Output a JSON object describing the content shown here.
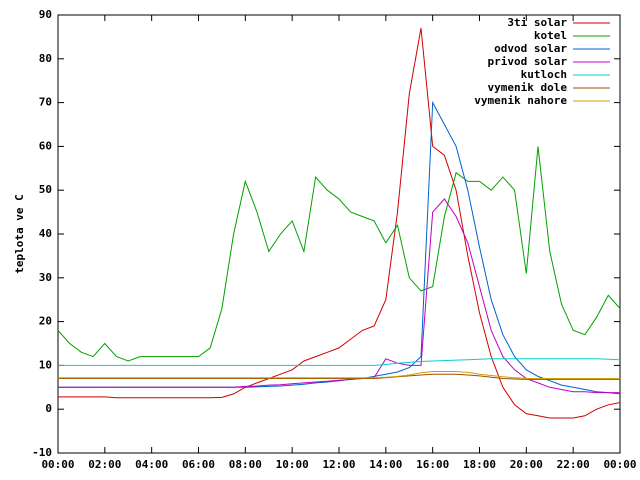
{
  "chart_data": {
    "type": "line",
    "ylabel": "teplota ve C",
    "x": [
      0,
      0.5,
      1,
      1.5,
      2,
      2.5,
      3,
      3.5,
      4,
      4.5,
      5,
      5.5,
      6,
      6.5,
      7,
      7.5,
      8,
      8.5,
      9,
      9.5,
      10,
      10.5,
      11,
      11.5,
      12,
      12.5,
      13,
      13.5,
      14,
      14.5,
      15,
      15.5,
      16,
      16.5,
      17,
      17.5,
      18,
      18.5,
      19,
      19.5,
      20,
      20.5,
      21,
      21.5,
      22,
      22.5,
      23,
      23.5,
      24
    ],
    "series": [
      {
        "name": "3ti solar",
        "color": "#d00000",
        "values": [
          2.8,
          2.8,
          2.8,
          2.8,
          2.8,
          2.6,
          2.6,
          2.6,
          2.6,
          2.6,
          2.6,
          2.6,
          2.6,
          2.6,
          2.7,
          3.5,
          5,
          6,
          7,
          8,
          9,
          11,
          12,
          13,
          14,
          16,
          18,
          19,
          25,
          45,
          72,
          87,
          60,
          58,
          50,
          35,
          22,
          12,
          5,
          1,
          -1,
          -1.5,
          -2,
          -2,
          -2,
          -1.5,
          0,
          1,
          1.5
        ]
      },
      {
        "name": "kotel",
        "color": "#00a000",
        "values": [
          18,
          15,
          13,
          12,
          15,
          12,
          11,
          12,
          12,
          12,
          12,
          12,
          12,
          14,
          23,
          40,
          52,
          45,
          36,
          40,
          43,
          36,
          53,
          50,
          48,
          45,
          44,
          43,
          38,
          42,
          30,
          27,
          28,
          44,
          54,
          52,
          52,
          50,
          53,
          50,
          31,
          60,
          36,
          24,
          18,
          17,
          21,
          26,
          23
        ]
      },
      {
        "name": "odvod solar",
        "color": "#0060d0",
        "values": [
          5,
          5,
          5,
          5,
          5,
          5,
          5,
          5,
          5,
          5,
          5,
          5,
          5,
          5,
          5,
          5,
          5,
          5.1,
          5.2,
          5.3,
          5.5,
          5.7,
          6,
          6.2,
          6.5,
          6.8,
          7,
          7.5,
          8,
          8.5,
          9.5,
          12,
          70,
          65,
          60,
          50,
          37,
          25,
          17,
          12,
          9,
          7.5,
          6.5,
          5.5,
          5,
          4.5,
          4,
          3.8,
          3.5
        ]
      },
      {
        "name": "privod solar",
        "color": "#c000c0",
        "values": [
          5,
          5,
          5,
          5,
          5,
          5,
          5,
          5,
          5,
          5,
          5,
          5,
          5,
          5,
          5,
          5,
          5.2,
          5.3,
          5.5,
          5.6,
          5.8,
          6,
          6.2,
          6.4,
          6.6,
          6.8,
          7,
          7.2,
          11.5,
          10.5,
          10,
          10,
          45,
          48,
          44,
          38,
          28,
          18,
          12,
          9,
          7,
          6,
          5,
          4.5,
          4,
          4,
          3.8,
          3.8,
          3.8
        ]
      },
      {
        "name": "kutloch",
        "color": "#00d0d0",
        "values": [
          10,
          10,
          10,
          10,
          10,
          10,
          10,
          10,
          10,
          10,
          10,
          10,
          10,
          10,
          10,
          10,
          10,
          10,
          10,
          10,
          10,
          10,
          10,
          10,
          10,
          10,
          10,
          10,
          10.2,
          10.5,
          10.7,
          10.9,
          11,
          11.1,
          11.2,
          11.3,
          11.4,
          11.5,
          11.5,
          11.5,
          11.5,
          11.5,
          11.5,
          11.5,
          11.5,
          11.5,
          11.5,
          11.4,
          11.3
        ]
      },
      {
        "name": "vymenik dole",
        "color": "#a05000",
        "values": [
          7,
          7,
          7,
          7,
          7,
          7,
          7,
          7,
          7,
          7,
          7,
          7,
          7,
          7,
          7,
          7,
          7,
          7,
          7,
          7,
          7,
          7,
          7,
          7,
          7,
          7,
          7,
          7,
          7.2,
          7.4,
          7.6,
          7.8,
          8,
          8,
          8,
          7.8,
          7.6,
          7.3,
          7,
          6.9,
          6.8,
          6.8,
          6.8,
          6.8,
          6.8,
          6.8,
          6.8,
          6.8,
          6.8
        ]
      },
      {
        "name": "vymenik nahore",
        "color": "#d0a000",
        "values": [
          7.2,
          7.2,
          7.2,
          7.2,
          7.2,
          7.2,
          7.2,
          7.2,
          7.2,
          7.2,
          7.2,
          7.2,
          7.2,
          7.2,
          7.2,
          7.2,
          7.2,
          7.2,
          7.2,
          7.2,
          7.2,
          7.2,
          7.2,
          7.2,
          7.2,
          7.2,
          7.2,
          7.2,
          7.3,
          7.5,
          7.8,
          8.3,
          8.6,
          8.6,
          8.6,
          8.4,
          8,
          7.7,
          7.4,
          7.2,
          7,
          7,
          7,
          7,
          7,
          7,
          7,
          7,
          7
        ]
      }
    ],
    "xlim": [
      0,
      24
    ],
    "xticks": [
      {
        "value": 0,
        "label": "00:00"
      },
      {
        "value": 2,
        "label": "02:00"
      },
      {
        "value": 4,
        "label": "04:00"
      },
      {
        "value": 6,
        "label": "06:00"
      },
      {
        "value": 8,
        "label": "08:00"
      },
      {
        "value": 10,
        "label": "10:00"
      },
      {
        "value": 12,
        "label": "12:00"
      },
      {
        "value": 14,
        "label": "14:00"
      },
      {
        "value": 16,
        "label": "16:00"
      },
      {
        "value": 18,
        "label": "18:00"
      },
      {
        "value": 20,
        "label": "20:00"
      },
      {
        "value": 22,
        "label": "22:00"
      },
      {
        "value": 24,
        "label": "00:00"
      }
    ],
    "ylim": [
      -10,
      90
    ],
    "yticks": [
      -10,
      0,
      10,
      20,
      30,
      40,
      50,
      60,
      70,
      80,
      90
    ],
    "grid": false,
    "legend": "top-right"
  }
}
